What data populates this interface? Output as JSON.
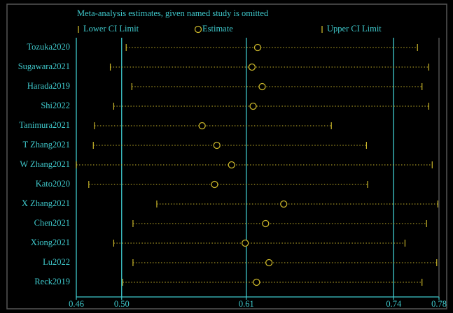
{
  "chart_data": {
    "type": "sensitivity",
    "title": "Meta-analysis estimates, given named study is omitted",
    "categories": [
      "Tozuka2020",
      "Sugawara2021",
      "Harada2019",
      "Shi2022",
      "Tanimura2021",
      "T Zhang2021",
      "W Zhang2021",
      "Kato2020",
      "X Zhang2021",
      "Chen2021",
      "Xiong2021",
      "Lu2022",
      "Reck2019"
    ],
    "series": [
      {
        "name": "Lower CI Limit",
        "color": "#c9b52a",
        "values": [
          0.504,
          0.49,
          0.509,
          0.493,
          0.476,
          0.475,
          0.46,
          0.471,
          0.531,
          0.51,
          0.493,
          0.51,
          0.501
        ]
      },
      {
        "name": "Estimate",
        "color": "#c9b52a",
        "values": [
          0.62,
          0.615,
          0.624,
          0.616,
          0.571,
          0.584,
          0.597,
          0.582,
          0.643,
          0.627,
          0.609,
          0.63,
          0.619
        ]
      },
      {
        "name": "Upper CI Limit",
        "color": "#c9b52a",
        "values": [
          0.761,
          0.771,
          0.765,
          0.771,
          0.685,
          0.716,
          0.774,
          0.717,
          0.779,
          0.769,
          0.75,
          0.778,
          0.765
        ]
      }
    ],
    "xlim": [
      0.46,
      0.78
    ],
    "xticks": [
      0.46,
      {
        "value": 0.5,
        "label": "0.50"
      },
      0.61,
      0.74,
      0.78
    ],
    "axis_color": "#3fc9cc"
  }
}
